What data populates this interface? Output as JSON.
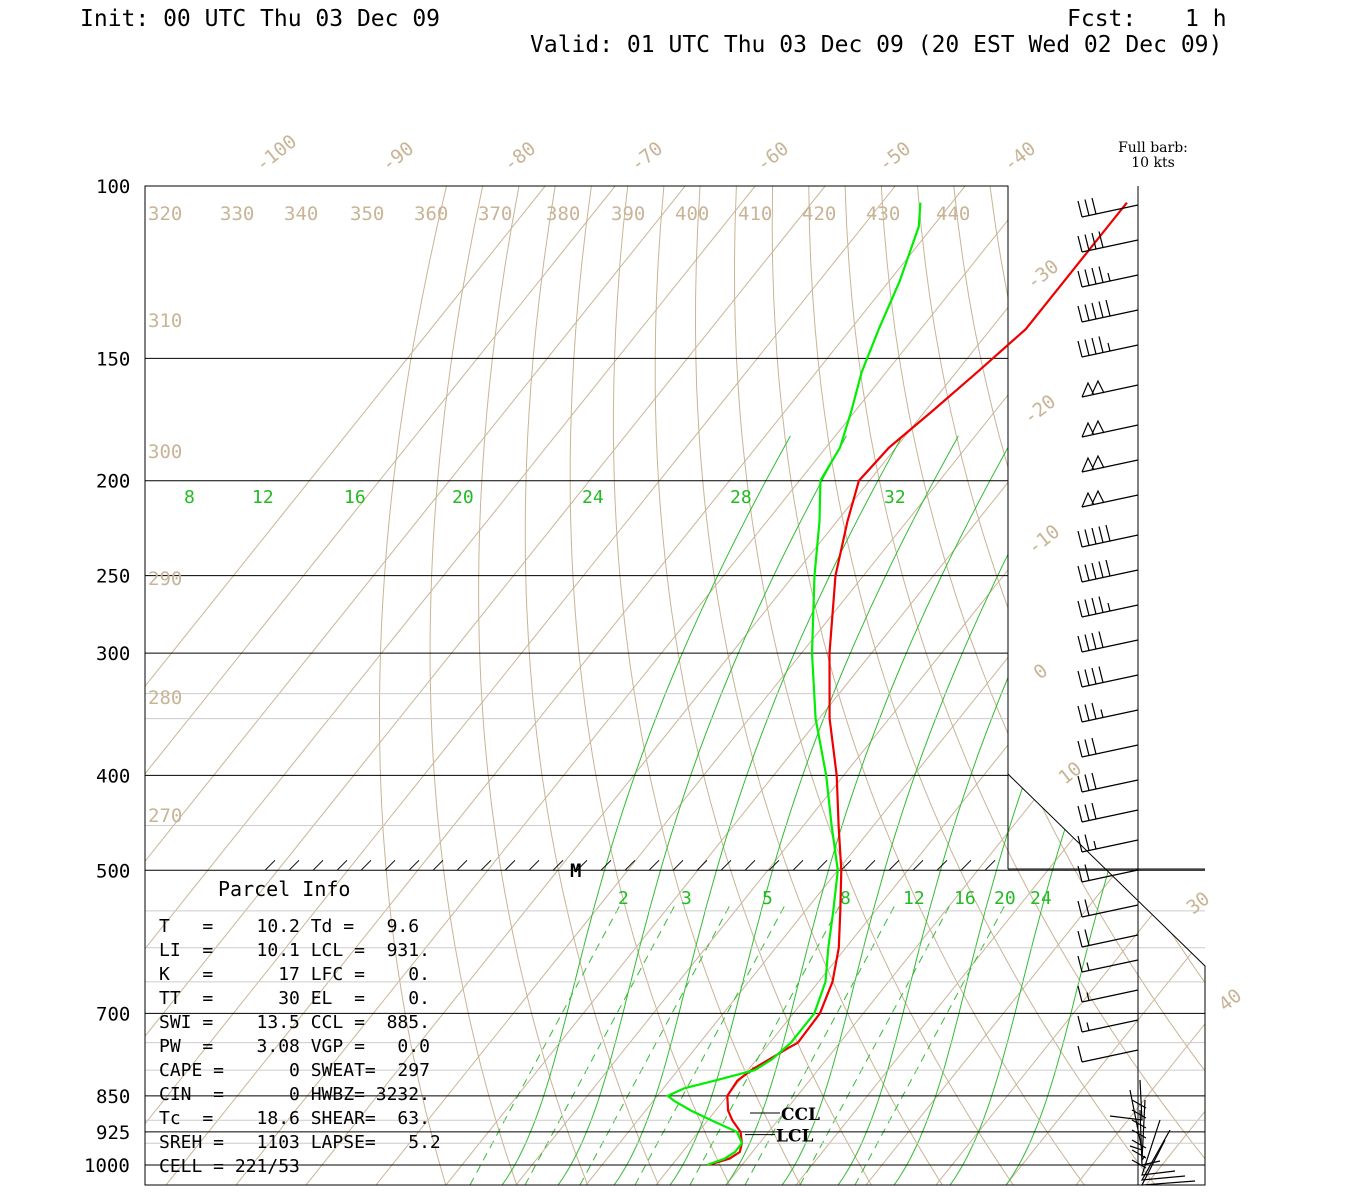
{
  "header": {
    "init": "Init: 00 UTC Thu 03 Dec 09",
    "fcst_label": "Fcst:",
    "fcst_value": "1 h",
    "valid": "Valid: 01 UTC Thu 03 Dec 09 (20 EST Wed 02 Dec 09)"
  },
  "barb_legend": {
    "line1": "Full barb:",
    "line2": "10 kts"
  },
  "colors": {
    "temperature": "#ee0000",
    "dewpoint": "#00ee00",
    "isotherm": "#c8b496",
    "mixing_ratio": "#22bb22",
    "frame": "#000000"
  },
  "chart_data": {
    "type": "line",
    "title": "",
    "xlabel": "",
    "ylabel": "",
    "ylim": [
      1000,
      100
    ],
    "y_scale": "log-pressure",
    "pressure_labels": [
      "100",
      "150",
      "200",
      "250",
      "300",
      "400",
      "500",
      "700",
      "850",
      "925",
      "1000"
    ],
    "isotherm_labels": [
      "-100",
      "-90",
      "-80",
      "-70",
      "-60",
      "-50",
      "-40",
      "-30",
      "-20",
      "-10",
      "0",
      "10",
      "30",
      "40"
    ],
    "theta_labels": [
      "320",
      "330",
      "340",
      "350",
      "360",
      "370",
      "380",
      "390",
      "400",
      "410",
      "420",
      "430",
      "440",
      "310",
      "300",
      "290",
      "280",
      "270"
    ],
    "mixing_ratio_labels_upper": [
      "8",
      "12",
      "16",
      "20",
      "24",
      "28",
      "32"
    ],
    "mixing_ratio_labels_lower": [
      "2",
      "3",
      "5",
      "8",
      "12",
      "16",
      "20",
      "24"
    ],
    "marker": "M",
    "level_markers": [
      "CCL",
      "LCL"
    ],
    "series": [
      {
        "key": "temperature",
        "points": [
          [
            1000,
            -4.8
          ],
          [
            985,
            -2.5
          ],
          [
            970,
            -1.8
          ],
          [
            950,
            -2.5
          ],
          [
            925,
            -4.0
          ],
          [
            900,
            -6.5
          ],
          [
            880,
            -8.2
          ],
          [
            850,
            -10.0
          ],
          [
            820,
            -10.3
          ],
          [
            800,
            -9.5
          ],
          [
            780,
            -8.2
          ],
          [
            760,
            -6.8
          ],
          [
            750,
            -6.0
          ],
          [
            700,
            -6.2
          ],
          [
            650,
            -8.0
          ],
          [
            600,
            -11.0
          ],
          [
            550,
            -15.0
          ],
          [
            500,
            -19.5
          ],
          [
            450,
            -25.0
          ],
          [
            400,
            -31.0
          ],
          [
            350,
            -38.5
          ],
          [
            300,
            -46.0
          ],
          [
            250,
            -54.0
          ],
          [
            220,
            -58.5
          ],
          [
            200,
            -61.5
          ],
          [
            185,
            -61.0
          ],
          [
            170,
            -59.0
          ],
          [
            155,
            -57.0
          ],
          [
            140,
            -55.0
          ],
          [
            125,
            -55.0
          ],
          [
            110,
            -55.0
          ],
          [
            104,
            -55.0
          ]
        ]
      },
      {
        "key": "dewpoint",
        "points": [
          [
            1000,
            -5.0
          ],
          [
            985,
            -3.2
          ],
          [
            970,
            -2.5
          ],
          [
            950,
            -2.5
          ],
          [
            925,
            -4.5
          ],
          [
            900,
            -9.5
          ],
          [
            880,
            -13.5
          ],
          [
            860,
            -17.0
          ],
          [
            850,
            -18.5
          ],
          [
            835,
            -17.0
          ],
          [
            820,
            -13.5
          ],
          [
            800,
            -9.0
          ],
          [
            780,
            -7.8
          ],
          [
            750,
            -7.0
          ],
          [
            700,
            -7.0
          ],
          [
            650,
            -9.0
          ],
          [
            600,
            -12.5
          ],
          [
            550,
            -16.0
          ],
          [
            500,
            -20.0
          ],
          [
            450,
            -26.0
          ],
          [
            400,
            -32.5
          ],
          [
            350,
            -40.5
          ],
          [
            300,
            -48.5
          ],
          [
            250,
            -57.0
          ],
          [
            220,
            -62.5
          ],
          [
            200,
            -67.0
          ],
          [
            185,
            -68.0
          ],
          [
            170,
            -70.5
          ],
          [
            155,
            -73.5
          ],
          [
            140,
            -76.0
          ],
          [
            125,
            -78.5
          ],
          [
            110,
            -82.0
          ],
          [
            104,
            -84.5
          ]
        ]
      }
    ]
  },
  "parcel_info": {
    "title": "Parcel Info",
    "rows": [
      "T   =    10.2 Td =   9.6",
      "LI  =    10.1 LCL =  931.",
      "K   =      17 LFC =    0.",
      "TT  =      30 EL  =    0.",
      "SWI =    13.5 CCL =  885.",
      "PW  =    3.08 VGP =   0.0",
      "CAPE =      0 SWEAT=  297",
      "CIN  =      0 HWBZ= 3232.",
      "Tc  =    18.6 SHEAR=  63.",
      "SREH =   1103 LAPSE=   5.2",
      "CELL = 221/53"
    ]
  },
  "wind_barbs": {
    "units": "kts",
    "items": [
      {
        "y": 205,
        "barbs": 3
      },
      {
        "y": 240,
        "barbs": 4
      },
      {
        "y": 275,
        "barbs": 4.5
      },
      {
        "y": 310,
        "barbs": 5
      },
      {
        "y": 345,
        "barbs": 4.5
      },
      {
        "y": 385,
        "barbs": "flag"
      },
      {
        "y": 425,
        "barbs": "flag"
      },
      {
        "y": 460,
        "barbs": "flag"
      },
      {
        "y": 495,
        "barbs": "flag"
      },
      {
        "y": 535,
        "barbs": 5
      },
      {
        "y": 570,
        "barbs": 5
      },
      {
        "y": 605,
        "barbs": 4.5
      },
      {
        "y": 640,
        "barbs": 4
      },
      {
        "y": 675,
        "barbs": 4
      },
      {
        "y": 710,
        "barbs": 3.5
      },
      {
        "y": 745,
        "barbs": 3
      },
      {
        "y": 780,
        "barbs": 3
      },
      {
        "y": 810,
        "barbs": 3
      },
      {
        "y": 840,
        "barbs": 2.5
      },
      {
        "y": 870,
        "barbs": 2
      },
      {
        "y": 905,
        "barbs": 2
      },
      {
        "y": 935,
        "barbs": 2
      },
      {
        "y": 960,
        "barbs": 1.5
      },
      {
        "y": 990,
        "barbs": 1.5
      },
      {
        "y": 1020,
        "barbs": 1.5
      },
      {
        "y": 1050,
        "barbs": 1
      }
    ]
  }
}
